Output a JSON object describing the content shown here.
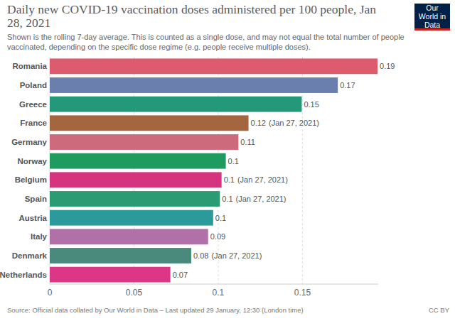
{
  "chart_data": {
    "type": "bar",
    "orientation": "horizontal",
    "title": "Daily new COVID-19 vaccination doses administered per 100 people, Jan 28, 2021",
    "subtitle": "Shown is the rolling 7-day average. This is counted as a single dose, and may not equal the total number of people vaccinated, depending on the specific dose regime (e.g. people receive multiple doses).",
    "logo": "Our World in Data",
    "source": "Source: Official data collated by Our World in Data – Last updated 29 January, 12:30 (London time)",
    "license": "CC BY",
    "categories": [
      "Romania",
      "Poland",
      "Greece",
      "France",
      "Germany",
      "Norway",
      "Belgium",
      "Spain",
      "Austria",
      "Italy",
      "Denmark",
      "Netherlands"
    ],
    "values": [
      0.1946,
      0.171,
      0.1496,
      0.118,
      0.112,
      0.1045,
      0.102,
      0.101,
      0.097,
      0.094,
      0.084,
      0.0716
    ],
    "value_labels": [
      "0.19",
      "0.17",
      "0.15",
      "0.12",
      "0.11",
      "0.1",
      "0.1",
      "0.1",
      "0.1",
      "0.09",
      "0.08",
      "0.07"
    ],
    "annotations": [
      null,
      null,
      null,
      "(Jan 27, 2021)",
      null,
      null,
      "(Jan 27, 2021)",
      "(Jan 27, 2021)",
      null,
      null,
      "(Jan 27, 2021)",
      null
    ],
    "colors": [
      "#dc5b6c",
      "#6a7fad",
      "#23997a",
      "#a3663f",
      "#cd6b7c",
      "#1f9b5f",
      "#d6347f",
      "#2a9b72",
      "#2b9a9a",
      "#b171a8",
      "#4a8a7c",
      "#dc3786"
    ],
    "xlim": [
      0,
      0.195
    ],
    "xticks": [
      0,
      0.05,
      0.1,
      0.15
    ],
    "grid": true,
    "data_labels": true
  }
}
